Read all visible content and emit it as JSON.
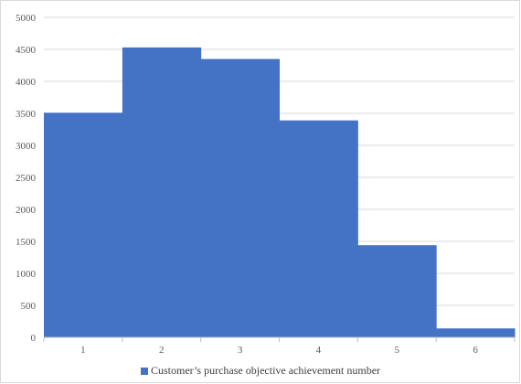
{
  "chart_data": {
    "type": "bar",
    "categories": [
      "1",
      "2",
      "3",
      "4",
      "5",
      "6"
    ],
    "series": [
      {
        "name": "Customer’s purchase objective achievement number",
        "values": [
          3510,
          4530,
          4350,
          3390,
          1440,
          140
        ],
        "color": "#4472C4"
      }
    ],
    "ylim": [
      0,
      5000
    ],
    "yticks": [
      "0",
      "500",
      "1000",
      "1500",
      "2000",
      "2500",
      "3000",
      "3500",
      "4000",
      "4500",
      "5000"
    ],
    "grid": true,
    "bar_gap": "none",
    "legend_position": "bottom"
  }
}
